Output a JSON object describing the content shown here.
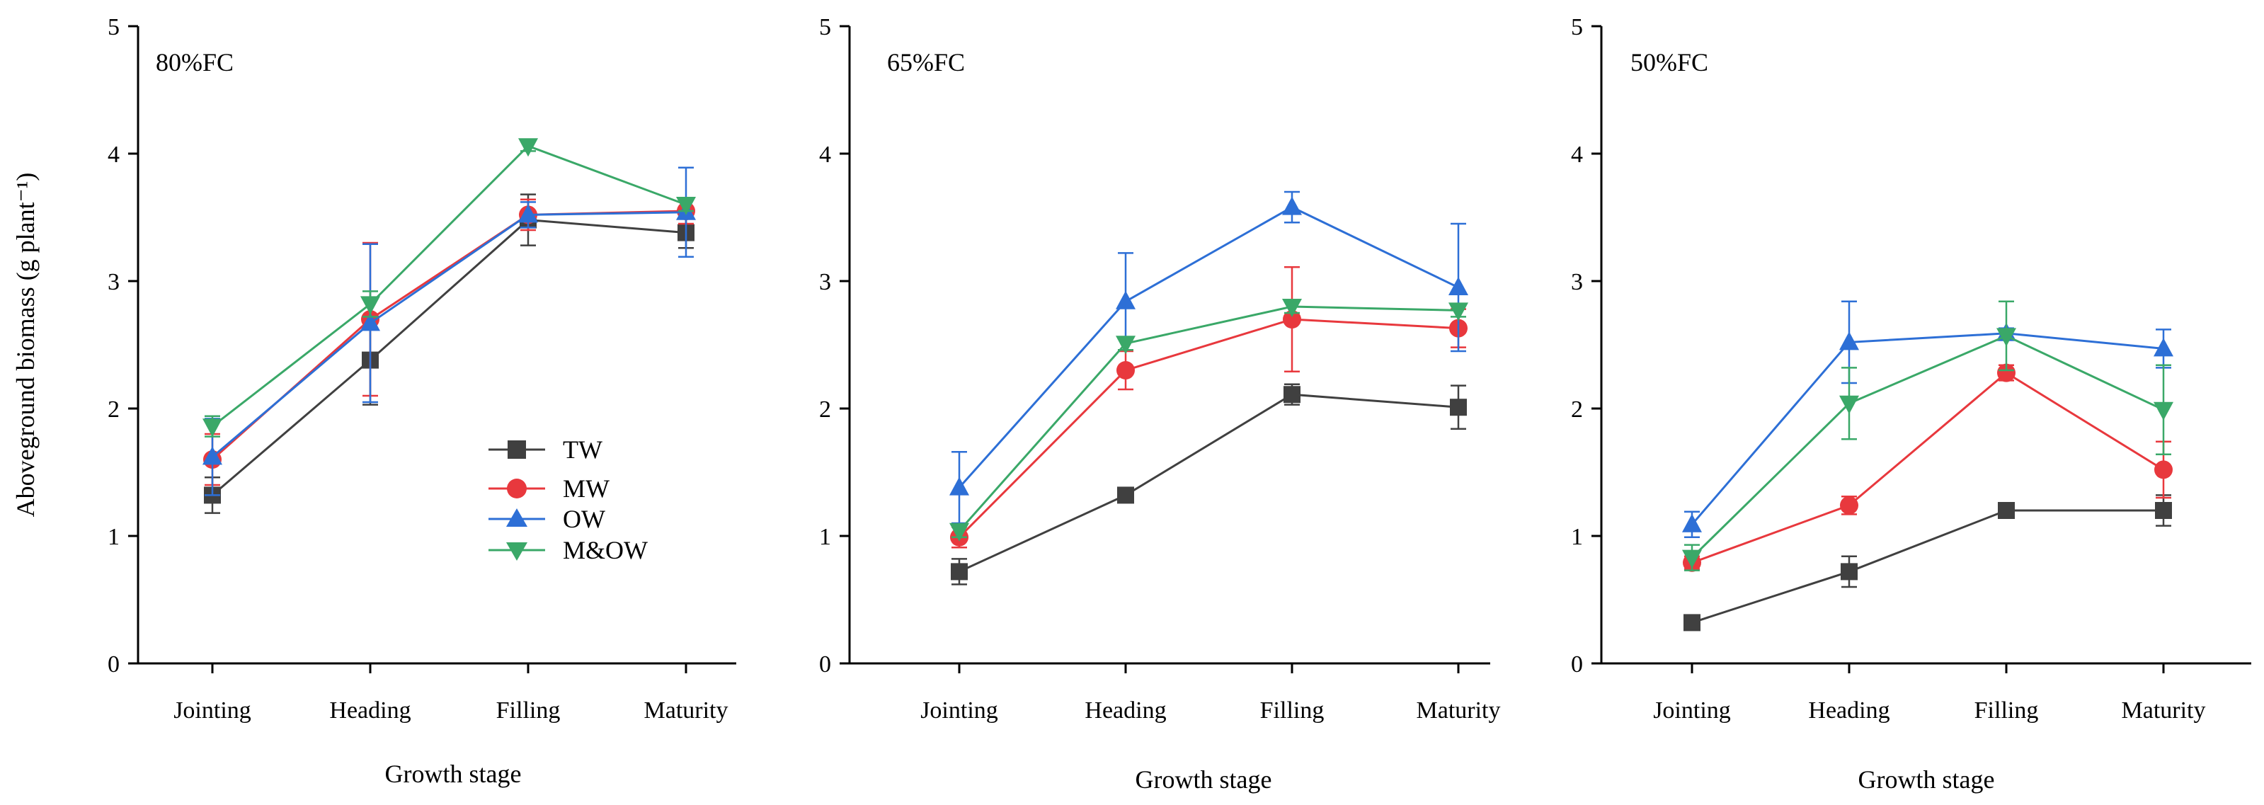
{
  "chart_data": [
    {
      "type": "line",
      "title": "80%FC",
      "xlabel": "Growth stage",
      "ylabel": "Aboveground biomass (g plant⁻¹)",
      "ylim": [
        0,
        5
      ],
      "yticks": [
        "0",
        "1",
        "2",
        "3",
        "4",
        "5"
      ],
      "categories": [
        "Jointing",
        "Heading",
        "Filling",
        "Maturity"
      ],
      "grid": false,
      "legend_position": "center",
      "series": [
        {
          "name": "TW",
          "color": "#404040",
          "marker": "square",
          "values": [
            1.32,
            2.38,
            3.48,
            3.38
          ],
          "errors": [
            0.14,
            0.35,
            0.2,
            0.12
          ]
        },
        {
          "name": "MW",
          "color": "#e8383d",
          "marker": "circle",
          "values": [
            1.6,
            2.7,
            3.52,
            3.55
          ],
          "errors": [
            0.2,
            0.6,
            0.12,
            0.1
          ]
        },
        {
          "name": "OW",
          "color": "#2d6fd6",
          "marker": "triangle-up",
          "values": [
            1.62,
            2.67,
            3.52,
            3.54
          ],
          "errors": [
            0.3,
            0.62,
            0.1,
            0.35
          ]
        },
        {
          "name": "M&OW",
          "color": "#3aa868",
          "marker": "triangle-down",
          "values": [
            1.86,
            2.82,
            4.06,
            3.6
          ],
          "errors": [
            0.08,
            0.1,
            0.04,
            0.05
          ]
        }
      ]
    },
    {
      "type": "line",
      "title": "65%FC",
      "xlabel": "Growth stage",
      "ylabel": "",
      "ylim": [
        0,
        5
      ],
      "yticks": [
        "0",
        "1",
        "2",
        "3",
        "4",
        "5"
      ],
      "categories": [
        "Jointing",
        "Heading",
        "Filling",
        "Maturity"
      ],
      "grid": false,
      "series": [
        {
          "name": "TW",
          "color": "#404040",
          "marker": "square",
          "values": [
            0.72,
            1.32,
            2.11,
            2.01
          ],
          "errors": [
            0.1,
            0.04,
            0.08,
            0.17
          ]
        },
        {
          "name": "MW",
          "color": "#e8383d",
          "marker": "circle",
          "values": [
            0.99,
            2.3,
            2.7,
            2.63
          ],
          "errors": [
            0.08,
            0.15,
            0.41,
            0.15
          ]
        },
        {
          "name": "OW",
          "color": "#2d6fd6",
          "marker": "triangle-up",
          "values": [
            1.38,
            2.84,
            3.58,
            2.95
          ],
          "errors": [
            0.28,
            0.38,
            0.12,
            0.5
          ]
        },
        {
          "name": "M&OW",
          "color": "#3aa868",
          "marker": "triangle-down",
          "values": [
            1.04,
            2.51,
            2.8,
            2.77
          ],
          "errors": [
            0.05,
            0.05,
            0.05,
            0.05
          ]
        }
      ]
    },
    {
      "type": "line",
      "title": "50%FC",
      "xlabel": "Growth stage",
      "ylabel": "",
      "ylim": [
        0,
        5
      ],
      "yticks": [
        "0",
        "1",
        "2",
        "3",
        "4",
        "5"
      ],
      "categories": [
        "Jointing",
        "Heading",
        "Filling",
        "Maturity"
      ],
      "grid": false,
      "series": [
        {
          "name": "TW",
          "color": "#404040",
          "marker": "square",
          "values": [
            0.32,
            0.72,
            1.2,
            1.2
          ],
          "errors": [
            0.03,
            0.12,
            0.05,
            0.12
          ]
        },
        {
          "name": "MW",
          "color": "#e8383d",
          "marker": "circle",
          "values": [
            0.79,
            1.24,
            2.28,
            1.52
          ],
          "errors": [
            0.05,
            0.07,
            0.06,
            0.22
          ]
        },
        {
          "name": "OW",
          "color": "#2d6fd6",
          "marker": "triangle-up",
          "values": [
            1.09,
            2.52,
            2.59,
            2.47
          ],
          "errors": [
            0.1,
            0.32,
            0.04,
            0.15
          ]
        },
        {
          "name": "M&OW",
          "color": "#3aa868",
          "marker": "triangle-down",
          "values": [
            0.83,
            2.04,
            2.57,
            1.99
          ],
          "errors": [
            0.1,
            0.28,
            0.27,
            0.35
          ]
        }
      ]
    }
  ]
}
